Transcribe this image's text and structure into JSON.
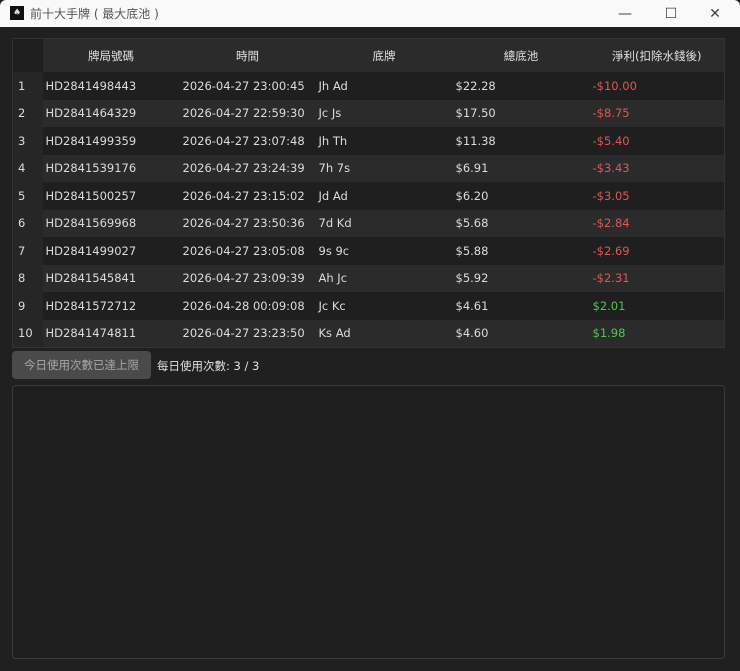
{
  "window": {
    "title": "前十大手牌 ( 最大底池 )",
    "icon": "app-icon",
    "controls": [
      "minimize",
      "maximize",
      "close"
    ]
  },
  "table": {
    "headers": [
      "",
      "牌局號碼",
      "時間",
      "底牌",
      "總底池",
      "淨利(扣除水錢後)"
    ],
    "rows": [
      {
        "n": "1",
        "id": "HD2841498443",
        "time": "2026-04-27 23:00:45",
        "hand": "Jh Ad",
        "pot": "$22.28",
        "net": "-$10.00"
      },
      {
        "n": "2",
        "id": "HD2841464329",
        "time": "2026-04-27 22:59:30",
        "hand": "Jc Js",
        "pot": "$17.50",
        "net": "-$8.75"
      },
      {
        "n": "3",
        "id": "HD2841499359",
        "time": "2026-04-27 23:07:48",
        "hand": "Jh Th",
        "pot": "$11.38",
        "net": "-$5.40"
      },
      {
        "n": "4",
        "id": "HD2841539176",
        "time": "2026-04-27 23:24:39",
        "hand": "7h 7s",
        "pot": "$6.91",
        "net": "-$3.43"
      },
      {
        "n": "5",
        "id": "HD2841500257",
        "time": "2026-04-27 23:15:02",
        "hand": "Jd Ad",
        "pot": "$6.20",
        "net": "-$3.05"
      },
      {
        "n": "6",
        "id": "HD2841569968",
        "time": "2026-04-27 23:50:36",
        "hand": "7d Kd",
        "pot": "$5.68",
        "net": "-$2.84"
      },
      {
        "n": "7",
        "id": "HD2841499027",
        "time": "2026-04-27 23:05:08",
        "hand": "9s 9c",
        "pot": "$5.88",
        "net": "-$2.69"
      },
      {
        "n": "8",
        "id": "HD2841545841",
        "time": "2026-04-27 23:09:39",
        "hand": "Ah Jc",
        "pot": "$5.92",
        "net": "-$2.31"
      },
      {
        "n": "9",
        "id": "HD2841572712",
        "time": "2026-04-28 00:09:08",
        "hand": "Jc Kc",
        "pot": "$4.61",
        "net": "$2.01"
      },
      {
        "n": "10",
        "id": "HD2841474811",
        "time": "2026-04-27 23:23:50",
        "hand": "Ks Ad",
        "pot": "$4.60",
        "net": "$1.98"
      }
    ]
  },
  "controls": {
    "limit_button": "今日使用次數已達上限",
    "usage_text": "每日使用次數: 3 / 3"
  },
  "colors": {
    "negative": "#e0555a",
    "positive": "#4fc74f"
  }
}
